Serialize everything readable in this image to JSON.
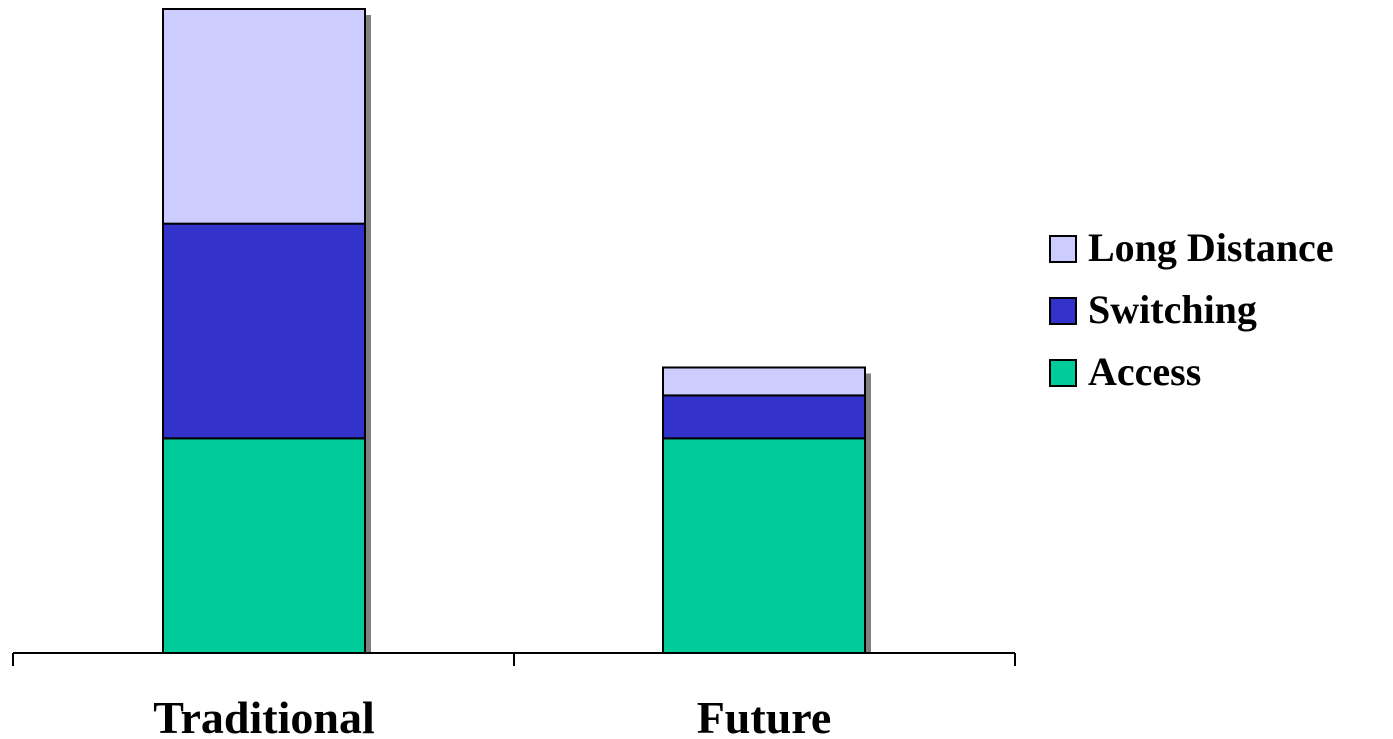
{
  "chart_data": {
    "type": "bar",
    "stacked": true,
    "categories": [
      "Traditional",
      "Future"
    ],
    "series": [
      {
        "name": "Access",
        "color": "#00cc99",
        "values": [
          1.0,
          1.0
        ]
      },
      {
        "name": "Switching",
        "color": "#3333cc",
        "values": [
          1.0,
          0.2
        ]
      },
      {
        "name": "Long Distance",
        "color": "#ccccff",
        "values": [
          1.0,
          0.13
        ]
      }
    ],
    "legend_order": [
      "Long Distance",
      "Switching",
      "Access"
    ],
    "legend_position": "right",
    "ylim": [
      0,
      3.0
    ],
    "grid": false,
    "title": "",
    "xlabel": "",
    "ylabel": ""
  }
}
